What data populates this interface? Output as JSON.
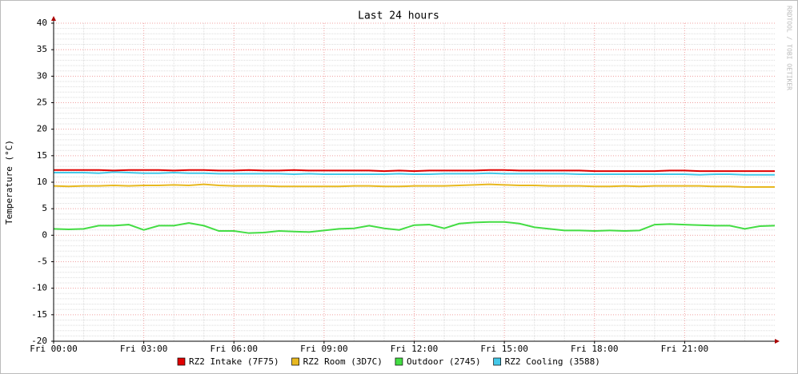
{
  "chart_data": {
    "type": "line",
    "title": "Last 24 hours",
    "y_label": "Temperature (°C)",
    "watermark": "RRDTOOL / TOBI OETIKER",
    "x": [
      0,
      0.5,
      1,
      1.5,
      2,
      2.5,
      3,
      3.5,
      4,
      4.5,
      5,
      5.5,
      6,
      6.5,
      7,
      7.5,
      8,
      8.5,
      9,
      9.5,
      10,
      10.5,
      11,
      11.5,
      12,
      12.5,
      13,
      13.5,
      14,
      14.5,
      15,
      15.5,
      16,
      16.5,
      17,
      17.5,
      18,
      18.5,
      19,
      19.5,
      20,
      20.5,
      21,
      21.5,
      22,
      22.5,
      23,
      23.5,
      24
    ],
    "xlim": [
      0,
      24
    ],
    "xticks": [
      {
        "value": 0,
        "label": "Fri 00:00"
      },
      {
        "value": 3,
        "label": "Fri 03:00"
      },
      {
        "value": 6,
        "label": "Fri 06:00"
      },
      {
        "value": 9,
        "label": "Fri 09:00"
      },
      {
        "value": 12,
        "label": "Fri 12:00"
      },
      {
        "value": 15,
        "label": "Fri 15:00"
      },
      {
        "value": 18,
        "label": "Fri 18:00"
      },
      {
        "value": 21,
        "label": "Fri 21:00"
      }
    ],
    "ylim": [
      -20,
      40
    ],
    "yticks": [
      -20,
      -15,
      -10,
      -5,
      0,
      5,
      10,
      15,
      20,
      25,
      30,
      35,
      40
    ],
    "grid": true,
    "series": [
      {
        "name": "RZ2 Intake (7F75)",
        "color": "#e00000",
        "values": [
          12.3,
          12.3,
          12.3,
          12.3,
          12.2,
          12.3,
          12.3,
          12.3,
          12.2,
          12.3,
          12.3,
          12.2,
          12.2,
          12.3,
          12.2,
          12.2,
          12.3,
          12.2,
          12.2,
          12.2,
          12.2,
          12.2,
          12.1,
          12.2,
          12.1,
          12.2,
          12.2,
          12.2,
          12.2,
          12.3,
          12.3,
          12.2,
          12.2,
          12.2,
          12.2,
          12.2,
          12.1,
          12.1,
          12.1,
          12.1,
          12.1,
          12.2,
          12.2,
          12.1,
          12.1,
          12.1,
          12.1,
          12.1,
          12.1
        ]
      },
      {
        "name": "RZ2 Room (3D7C)",
        "color": "#e8b820",
        "values": [
          9.3,
          9.2,
          9.3,
          9.3,
          9.4,
          9.3,
          9.4,
          9.4,
          9.5,
          9.4,
          9.6,
          9.4,
          9.3,
          9.3,
          9.3,
          9.2,
          9.2,
          9.2,
          9.2,
          9.2,
          9.3,
          9.3,
          9.2,
          9.2,
          9.3,
          9.3,
          9.3,
          9.4,
          9.5,
          9.6,
          9.5,
          9.4,
          9.4,
          9.3,
          9.3,
          9.3,
          9.2,
          9.2,
          9.3,
          9.2,
          9.3,
          9.3,
          9.3,
          9.3,
          9.2,
          9.2,
          9.1,
          9.1,
          9.1
        ]
      },
      {
        "name": "Outdoor (2745)",
        "color": "#44dd44",
        "values": [
          1.2,
          1.1,
          1.2,
          1.8,
          1.8,
          2.0,
          1.0,
          1.8,
          1.8,
          2.3,
          1.8,
          0.8,
          0.8,
          0.4,
          0.5,
          0.8,
          0.7,
          0.6,
          0.9,
          1.2,
          1.3,
          1.8,
          1.3,
          1.0,
          1.9,
          2.0,
          1.3,
          2.2,
          2.4,
          2.5,
          2.5,
          2.2,
          1.5,
          1.2,
          0.9,
          0.9,
          0.8,
          0.9,
          0.8,
          0.9,
          2.0,
          2.1,
          2.0,
          1.9,
          1.8,
          1.8,
          1.2,
          1.7,
          1.8
        ]
      },
      {
        "name": "RZ2 Cooling (3588)",
        "color": "#44c8e8",
        "values": [
          11.8,
          11.8,
          11.8,
          11.7,
          11.9,
          11.8,
          11.7,
          11.7,
          11.8,
          11.7,
          11.7,
          11.6,
          11.6,
          11.6,
          11.6,
          11.6,
          11.5,
          11.6,
          11.5,
          11.5,
          11.5,
          11.5,
          11.5,
          11.6,
          11.5,
          11.5,
          11.6,
          11.6,
          11.6,
          11.7,
          11.6,
          11.6,
          11.6,
          11.6,
          11.6,
          11.5,
          11.5,
          11.5,
          11.5,
          11.5,
          11.5,
          11.5,
          11.5,
          11.4,
          11.5,
          11.5,
          11.4,
          11.4,
          11.4
        ]
      }
    ]
  }
}
